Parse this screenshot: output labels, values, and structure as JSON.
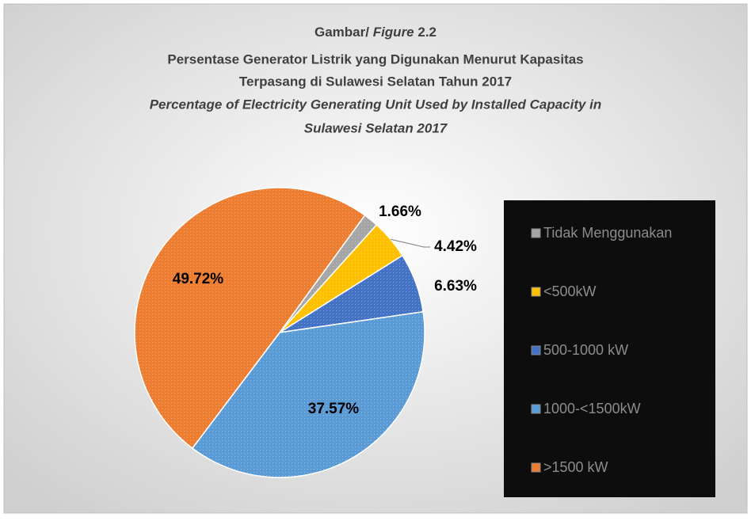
{
  "chart_data": {
    "type": "pie",
    "figure_label": {
      "prefix": "Gambar/",
      "italic": "Figure",
      "number": "2.2"
    },
    "title_lines": [
      "Persentase Generator Listrik yang Digunakan Menurut Kapasitas",
      "Terpasang di Sulawesi Selatan Tahun 2017"
    ],
    "title_lines_en": [
      "Percentage of Electricity Generating Unit Used by Installed Capacity in",
      "Sulawesi Selatan 2017"
    ],
    "categories": [
      "Tidak Menggunakan",
      "<500kW",
      "500-1000 kW",
      "1000-<1500kW",
      ">1500 kW"
    ],
    "values": [
      1.66,
      4.42,
      6.63,
      37.57,
      49.72
    ],
    "value_labels": [
      "1.66%",
      "4.42%",
      "6.63%",
      "37.57%",
      "49.72%"
    ],
    "colors": [
      "#a5a5a5",
      "#ffc000",
      "#4472c4",
      "#5b9bd5",
      "#ed7d31"
    ],
    "legend": "right"
  }
}
